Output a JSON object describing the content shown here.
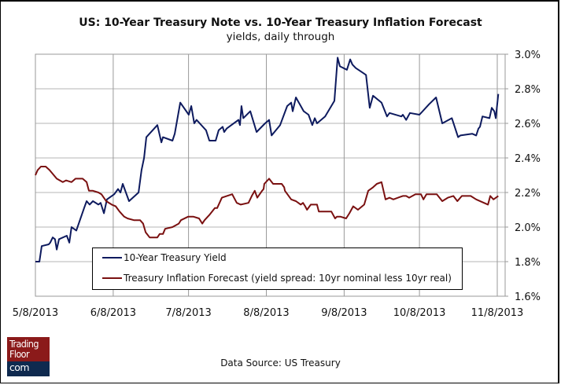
{
  "chart_data": {
    "type": "line",
    "title": "US: 10-Year Treasury Note vs. 10-Year Treasury Inflation Forecast",
    "subtitle": "yields, daily through",
    "xlabel": "",
    "ylabel": "",
    "x_axis": {
      "unit": "days since 5/8/2013",
      "range": [
        0,
        184
      ],
      "ticks": [
        {
          "day": 0,
          "label": "5/8/2013"
        },
        {
          "day": 31,
          "label": "6/8/2013"
        },
        {
          "day": 61,
          "label": "7/8/2013"
        },
        {
          "day": 92,
          "label": "8/8/2013"
        },
        {
          "day": 123,
          "label": "9/8/2013"
        },
        {
          "day": 153,
          "label": "10/8/2013"
        },
        {
          "day": 184,
          "label": "11/8/2013"
        }
      ]
    },
    "y_axis": {
      "side": "right",
      "ylim": [
        1.6,
        3.0
      ],
      "ticks": [
        3.0,
        2.8,
        2.6,
        2.4,
        2.2,
        2.0,
        1.8,
        1.6
      ],
      "tick_labels": [
        "3.0%",
        "2.8%",
        "2.6%",
        "2.4%",
        "2.2%",
        "2.0%",
        "1.8%",
        "1.6%"
      ]
    },
    "grid": true,
    "legend_position": "bottom-center-inside",
    "series": [
      {
        "name": "10-Year Treasury Yield",
        "color": "#0d1a5e",
        "points": [
          [
            0,
            1.8
          ],
          [
            1.6,
            1.8
          ],
          [
            2.5,
            1.89
          ],
          [
            5.3,
            1.9
          ],
          [
            5.9,
            1.91
          ],
          [
            6.9,
            1.94
          ],
          [
            7.8,
            1.93
          ],
          [
            8.5,
            1.87
          ],
          [
            9.4,
            1.93
          ],
          [
            12.5,
            1.95
          ],
          [
            13.5,
            1.91
          ],
          [
            14.4,
            2.0
          ],
          [
            16.3,
            1.98
          ],
          [
            19.4,
            2.11
          ],
          [
            20.4,
            2.15
          ],
          [
            21.6,
            2.13
          ],
          [
            22.9,
            2.15
          ],
          [
            25.1,
            2.13
          ],
          [
            26,
            2.14
          ],
          [
            27.3,
            2.08
          ],
          [
            28.5,
            2.16
          ],
          [
            31.4,
            2.19
          ],
          [
            32.9,
            2.22
          ],
          [
            33.9,
            2.2
          ],
          [
            34.8,
            2.25
          ],
          [
            37.3,
            2.15
          ],
          [
            41.1,
            2.2
          ],
          [
            42.3,
            2.33
          ],
          [
            43.3,
            2.4
          ],
          [
            44.2,
            2.52
          ],
          [
            48.6,
            2.59
          ],
          [
            50.2,
            2.49
          ],
          [
            50.8,
            2.52
          ],
          [
            54.6,
            2.5
          ],
          [
            55.5,
            2.54
          ],
          [
            57.7,
            2.72
          ],
          [
            61.1,
            2.65
          ],
          [
            62.1,
            2.7
          ],
          [
            63.3,
            2.6
          ],
          [
            64.2,
            2.62
          ],
          [
            68,
            2.56
          ],
          [
            69.3,
            2.5
          ],
          [
            71.8,
            2.5
          ],
          [
            73,
            2.56
          ],
          [
            74.6,
            2.58
          ],
          [
            75.2,
            2.55
          ],
          [
            76.2,
            2.57
          ],
          [
            80.9,
            2.62
          ],
          [
            81.5,
            2.59
          ],
          [
            82.1,
            2.7
          ],
          [
            82.8,
            2.63
          ],
          [
            85.6,
            2.67
          ],
          [
            88.1,
            2.55
          ],
          [
            91.5,
            2.6
          ],
          [
            93.1,
            2.62
          ],
          [
            94.1,
            2.53
          ],
          [
            97.5,
            2.59
          ],
          [
            100.3,
            2.7
          ],
          [
            101.9,
            2.72
          ],
          [
            102.5,
            2.67
          ],
          [
            103.8,
            2.75
          ],
          [
            106.9,
            2.67
          ],
          [
            108.8,
            2.65
          ],
          [
            110.3,
            2.59
          ],
          [
            111.3,
            2.63
          ],
          [
            112.2,
            2.6
          ],
          [
            115.4,
            2.64
          ],
          [
            119.1,
            2.73
          ],
          [
            120.4,
            2.98
          ],
          [
            121.3,
            2.93
          ],
          [
            124.1,
            2.91
          ],
          [
            125.4,
            2.97
          ],
          [
            126.3,
            2.94
          ],
          [
            127.6,
            2.92
          ],
          [
            130.7,
            2.89
          ],
          [
            131.7,
            2.88
          ],
          [
            133.2,
            2.69
          ],
          [
            134.5,
            2.76
          ],
          [
            137.9,
            2.72
          ],
          [
            140.1,
            2.64
          ],
          [
            141.1,
            2.66
          ],
          [
            145.8,
            2.64
          ],
          [
            146.4,
            2.65
          ],
          [
            147.7,
            2.62
          ],
          [
            149.2,
            2.66
          ],
          [
            153,
            2.65
          ],
          [
            156.8,
            2.71
          ],
          [
            159.6,
            2.75
          ],
          [
            162.1,
            2.6
          ],
          [
            165.9,
            2.63
          ],
          [
            168.4,
            2.52
          ],
          [
            169.3,
            2.53
          ],
          [
            174,
            2.54
          ],
          [
            175.6,
            2.53
          ],
          [
            176.5,
            2.57
          ],
          [
            177.1,
            2.58
          ],
          [
            178.1,
            2.64
          ],
          [
            180.9,
            2.63
          ],
          [
            181.8,
            2.69
          ],
          [
            182.8,
            2.67
          ],
          [
            183.4,
            2.63
          ],
          [
            184.4,
            2.77
          ]
        ]
      },
      {
        "name": "Treasury Inflation Forecast (yield spread: 10yr nominal less 10yr real)",
        "color": "#7a1010",
        "points": [
          [
            0,
            2.3
          ],
          [
            0.9,
            2.33
          ],
          [
            2.2,
            2.35
          ],
          [
            4.1,
            2.35
          ],
          [
            5.6,
            2.33
          ],
          [
            8.5,
            2.28
          ],
          [
            10.9,
            2.26
          ],
          [
            12.2,
            2.27
          ],
          [
            14.4,
            2.26
          ],
          [
            16,
            2.28
          ],
          [
            18.8,
            2.28
          ],
          [
            20.4,
            2.26
          ],
          [
            21.3,
            2.21
          ],
          [
            22.9,
            2.21
          ],
          [
            25.1,
            2.2
          ],
          [
            26.3,
            2.19
          ],
          [
            28.2,
            2.15
          ],
          [
            30.4,
            2.13
          ],
          [
            32,
            2.12
          ],
          [
            33.5,
            2.09
          ],
          [
            35.4,
            2.06
          ],
          [
            36.7,
            2.05
          ],
          [
            39.2,
            2.04
          ],
          [
            41.7,
            2.04
          ],
          [
            42.9,
            2.02
          ],
          [
            43.9,
            1.97
          ],
          [
            45.5,
            1.94
          ],
          [
            48.6,
            1.94
          ],
          [
            49.5,
            1.96
          ],
          [
            50.8,
            1.96
          ],
          [
            51.7,
            1.99
          ],
          [
            54.6,
            2.0
          ],
          [
            57.1,
            2.02
          ],
          [
            58,
            2.04
          ],
          [
            60.8,
            2.06
          ],
          [
            63,
            2.06
          ],
          [
            65.2,
            2.05
          ],
          [
            66.5,
            2.02
          ],
          [
            67.4,
            2.04
          ],
          [
            69.3,
            2.07
          ],
          [
            71.5,
            2.11
          ],
          [
            72.4,
            2.11
          ],
          [
            74.3,
            2.17
          ],
          [
            78.4,
            2.19
          ],
          [
            80.2,
            2.14
          ],
          [
            81.8,
            2.13
          ],
          [
            84.9,
            2.14
          ],
          [
            86.2,
            2.18
          ],
          [
            87.4,
            2.21
          ],
          [
            88.4,
            2.17
          ],
          [
            90.3,
            2.21
          ],
          [
            90.9,
            2.22
          ],
          [
            91.2,
            2.25
          ],
          [
            93.1,
            2.28
          ],
          [
            94.7,
            2.25
          ],
          [
            98.1,
            2.25
          ],
          [
            99.1,
            2.23
          ],
          [
            99.4,
            2.21
          ],
          [
            101.9,
            2.16
          ],
          [
            103.8,
            2.15
          ],
          [
            105.7,
            2.13
          ],
          [
            106.6,
            2.14
          ],
          [
            107.5,
            2.12
          ],
          [
            108.2,
            2.1
          ],
          [
            109.7,
            2.13
          ],
          [
            112.2,
            2.13
          ],
          [
            112.9,
            2.09
          ],
          [
            117.9,
            2.09
          ],
          [
            119.4,
            2.05
          ],
          [
            120.1,
            2.06
          ],
          [
            121.6,
            2.06
          ],
          [
            123.8,
            2.05
          ],
          [
            125.1,
            2.08
          ],
          [
            126.6,
            2.12
          ],
          [
            128.5,
            2.1
          ],
          [
            131,
            2.13
          ],
          [
            132.6,
            2.21
          ],
          [
            134.5,
            2.23
          ],
          [
            136,
            2.25
          ],
          [
            137.9,
            2.26
          ],
          [
            139.5,
            2.16
          ],
          [
            141.1,
            2.17
          ],
          [
            142.6,
            2.16
          ],
          [
            146.4,
            2.18
          ],
          [
            147.7,
            2.18
          ],
          [
            148.9,
            2.17
          ],
          [
            151.4,
            2.19
          ],
          [
            153.6,
            2.19
          ],
          [
            154.6,
            2.16
          ],
          [
            155.8,
            2.19
          ],
          [
            159.9,
            2.19
          ],
          [
            162.1,
            2.15
          ],
          [
            164.3,
            2.17
          ],
          [
            166.5,
            2.18
          ],
          [
            168.1,
            2.15
          ],
          [
            169.9,
            2.18
          ],
          [
            173.4,
            2.18
          ],
          [
            175.6,
            2.16
          ],
          [
            178.7,
            2.14
          ],
          [
            180.3,
            2.13
          ],
          [
            181.2,
            2.18
          ],
          [
            182.5,
            2.16
          ],
          [
            184.4,
            2.18
          ]
        ]
      }
    ]
  },
  "footer": {
    "source": "Data Source: US Treasury",
    "logo_line1": "Trading",
    "logo_line2": "Floor",
    "logo_line3": "com"
  }
}
